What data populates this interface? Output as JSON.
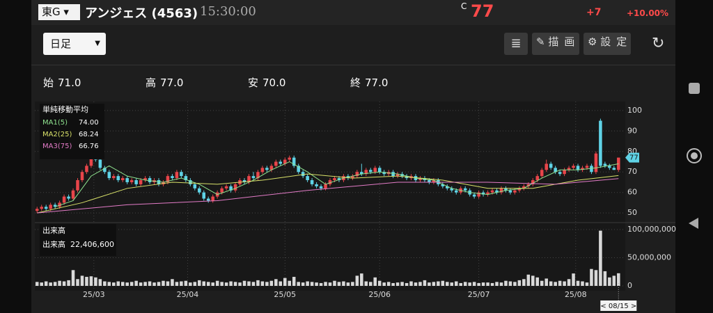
{
  "header": {
    "market": "東G",
    "name": "アンジェス (4563)",
    "time": "15:30:00",
    "price_prefix": "C",
    "price": "77",
    "change": "+7",
    "change_pct": "+10.00%"
  },
  "toolbar": {
    "period": "日足",
    "buttons": [
      "描画",
      "設定"
    ]
  },
  "stats": [
    {
      "label": "始",
      "value": "71.0"
    },
    {
      "label": "高",
      "value": "77.0"
    },
    {
      "label": "安",
      "value": "70.0"
    },
    {
      "label": "終",
      "value": "77.0"
    }
  ],
  "chart_data": {
    "type": "candlestick",
    "legend_title": "単純移動平均",
    "up_color": "#e8454a",
    "down_color": "#5fd3e6",
    "xlim": [
      -0.5,
      130.5
    ],
    "xticks": [
      {
        "value": 12.6,
        "label": "25/03"
      },
      {
        "value": 33.4,
        "label": "25/04"
      },
      {
        "value": 55,
        "label": "25/05"
      },
      {
        "value": 76,
        "label": "25/06"
      },
      {
        "value": 98,
        "label": "25/07"
      },
      {
        "value": 119.5,
        "label": "25/08"
      }
    ],
    "ylim": [
      47,
      103
    ],
    "yticks": [
      50,
      60,
      70,
      80,
      90,
      100
    ],
    "grid": true,
    "candles": [
      [
        51,
        53,
        50,
        52
      ],
      [
        52,
        54,
        51,
        53
      ],
      [
        53,
        54,
        51,
        52
      ],
      [
        52,
        55,
        51,
        54
      ],
      [
        54,
        55,
        52,
        53
      ],
      [
        53,
        56,
        52,
        55
      ],
      [
        55,
        59,
        54,
        58
      ],
      [
        58,
        59,
        56,
        57
      ],
      [
        57,
        62,
        56,
        61
      ],
      [
        61,
        67,
        60,
        66
      ],
      [
        66,
        71,
        65,
        70
      ],
      [
        70,
        74,
        69,
        73
      ],
      [
        73,
        78,
        72,
        77
      ],
      [
        77,
        79,
        75,
        76
      ],
      [
        76,
        77,
        71,
        72
      ],
      [
        72,
        73,
        69,
        70
      ],
      [
        70,
        71,
        66,
        67
      ],
      [
        67,
        69,
        66,
        68
      ],
      [
        68,
        69,
        65,
        66
      ],
      [
        66,
        68,
        65,
        67
      ],
      [
        67,
        68,
        64,
        65
      ],
      [
        65,
        67,
        64,
        66
      ],
      [
        66,
        67,
        63,
        64
      ],
      [
        64,
        67,
        63,
        66
      ],
      [
        66,
        68,
        65,
        67
      ],
      [
        67,
        68,
        64,
        65
      ],
      [
        65,
        67,
        64,
        66
      ],
      [
        66,
        67,
        63,
        64
      ],
      [
        64,
        66,
        63,
        65
      ],
      [
        65,
        69,
        64,
        68
      ],
      [
        68,
        69,
        66,
        67
      ],
      [
        67,
        71,
        66,
        70
      ],
      [
        70,
        71,
        67,
        68
      ],
      [
        68,
        69,
        65,
        66
      ],
      [
        66,
        67,
        63,
        64
      ],
      [
        64,
        65,
        61,
        62
      ],
      [
        62,
        63,
        59,
        60
      ],
      [
        60,
        61,
        56,
        57
      ],
      [
        57,
        58,
        55,
        56
      ],
      [
        56,
        59,
        55,
        58
      ],
      [
        58,
        61,
        57,
        60
      ],
      [
        60,
        63,
        59,
        62
      ],
      [
        62,
        64,
        61,
        63
      ],
      [
        63,
        64,
        60,
        61
      ],
      [
        61,
        65,
        60,
        64
      ],
      [
        64,
        67,
        63,
        66
      ],
      [
        66,
        67,
        64,
        65
      ],
      [
        65,
        69,
        64,
        68
      ],
      [
        68,
        70,
        66,
        67
      ],
      [
        67,
        71,
        66,
        70
      ],
      [
        70,
        73,
        69,
        72
      ],
      [
        72,
        73,
        70,
        71
      ],
      [
        71,
        74,
        70,
        73
      ],
      [
        73,
        76,
        72,
        75
      ],
      [
        75,
        76,
        73,
        74
      ],
      [
        74,
        77,
        73,
        76
      ],
      [
        76,
        78,
        75,
        77
      ],
      [
        77,
        78,
        72,
        73
      ],
      [
        73,
        74,
        69,
        70
      ],
      [
        70,
        71,
        67,
        68
      ],
      [
        68,
        69,
        65,
        66
      ],
      [
        66,
        67,
        63,
        64
      ],
      [
        64,
        65,
        62,
        63
      ],
      [
        63,
        64,
        61,
        62
      ],
      [
        62,
        65,
        61,
        64
      ],
      [
        64,
        67,
        63,
        66
      ],
      [
        66,
        68,
        65,
        67
      ],
      [
        67,
        68,
        65,
        66
      ],
      [
        66,
        69,
        65,
        68
      ],
      [
        68,
        69,
        66,
        67
      ],
      [
        67,
        69,
        66,
        68
      ],
      [
        68,
        71,
        67,
        70
      ],
      [
        70,
        74,
        68,
        69
      ],
      [
        69,
        72,
        68,
        71
      ],
      [
        71,
        72,
        69,
        70
      ],
      [
        70,
        73,
        69,
        72
      ],
      [
        72,
        73,
        69,
        70
      ],
      [
        70,
        71,
        68,
        69
      ],
      [
        69,
        71,
        68,
        70
      ],
      [
        70,
        71,
        67,
        68
      ],
      [
        68,
        70,
        67,
        69
      ],
      [
        69,
        70,
        67,
        68
      ],
      [
        68,
        69,
        66,
        67
      ],
      [
        67,
        69,
        66,
        68
      ],
      [
        68,
        69,
        65,
        66
      ],
      [
        66,
        68,
        65,
        67
      ],
      [
        67,
        68,
        65,
        66
      ],
      [
        66,
        67,
        64,
        65
      ],
      [
        65,
        67,
        64,
        66
      ],
      [
        66,
        67,
        63,
        64
      ],
      [
        64,
        65,
        62,
        63
      ],
      [
        63,
        64,
        61,
        62
      ],
      [
        62,
        63,
        60,
        61
      ],
      [
        61,
        62,
        59,
        60
      ],
      [
        60,
        63,
        59,
        62
      ],
      [
        62,
        63,
        60,
        61
      ],
      [
        61,
        62,
        58,
        59
      ],
      [
        59,
        60,
        57,
        58
      ],
      [
        58,
        61,
        57,
        60
      ],
      [
        60,
        61,
        58,
        59
      ],
      [
        59,
        61,
        58,
        60
      ],
      [
        60,
        62,
        59,
        61
      ],
      [
        61,
        62,
        59,
        60
      ],
      [
        60,
        63,
        59,
        62
      ],
      [
        62,
        63,
        60,
        61
      ],
      [
        61,
        62,
        59,
        60
      ],
      [
        60,
        62,
        59,
        61
      ],
      [
        61,
        63,
        60,
        62
      ],
      [
        62,
        64,
        61,
        63
      ],
      [
        63,
        65,
        62,
        64
      ],
      [
        64,
        67,
        63,
        66
      ],
      [
        66,
        69,
        65,
        68
      ],
      [
        68,
        72,
        67,
        71
      ],
      [
        71,
        76,
        70,
        74
      ],
      [
        74,
        75,
        71,
        72
      ],
      [
        72,
        73,
        69,
        70
      ],
      [
        70,
        71,
        68,
        69
      ],
      [
        69,
        72,
        68,
        71
      ],
      [
        71,
        73,
        70,
        72
      ],
      [
        72,
        74,
        71,
        73
      ],
      [
        73,
        74,
        70,
        71
      ],
      [
        71,
        73,
        70,
        72
      ],
      [
        72,
        74,
        71,
        73
      ],
      [
        73,
        74,
        69,
        70
      ],
      [
        70,
        80,
        69,
        79
      ],
      [
        95,
        96,
        72,
        73
      ],
      [
        74,
        75,
        72,
        73
      ],
      [
        73,
        74,
        71,
        72
      ],
      [
        72,
        73,
        71,
        71
      ],
      [
        71,
        77,
        70,
        77
      ]
    ],
    "series": [
      {
        "name": "MA1(5)",
        "color": "#8fe38f",
        "value_label": "74.00",
        "x": [
          4,
          8,
          12,
          16,
          20,
          24,
          28,
          32,
          36,
          40,
          44,
          48,
          52,
          56,
          60,
          64,
          68,
          72,
          76,
          80,
          84,
          88,
          92,
          96,
          100,
          104,
          108,
          112,
          116,
          120,
          124,
          129
        ],
        "values": [
          53,
          56,
          68,
          73,
          68,
          66,
          65,
          67,
          64,
          59,
          62,
          66,
          71,
          75,
          70,
          64,
          67,
          69,
          70,
          69,
          67,
          66,
          62,
          60,
          59,
          61,
          62,
          67,
          71,
          71,
          72,
          74
        ]
      },
      {
        "name": "MA2(25)",
        "color": "#d9e26a",
        "value_label": "68.24",
        "x": [
          0,
          10,
          20,
          30,
          40,
          50,
          60,
          70,
          80,
          90,
          100,
          110,
          120,
          129
        ],
        "values": [
          50,
          55,
          62,
          65,
          64,
          66,
          69,
          67,
          68,
          66,
          62,
          62,
          66,
          68.24
        ]
      },
      {
        "name": "MA3(75)",
        "color": "#e47cc8",
        "value_label": "66.76",
        "x": [
          0,
          20,
          40,
          60,
          80,
          100,
          115,
          129
        ],
        "values": [
          50,
          54,
          56,
          61,
          65,
          65,
          64,
          66.76
        ]
      }
    ],
    "volume": {
      "title": "出来高",
      "label": "出来高",
      "value_label": "22,406,600",
      "color": "#d9d9d9",
      "ylim": [
        0,
        100000000
      ],
      "yticks": [
        0,
        {
          "value": 50000000,
          "label": "50,000,000"
        },
        {
          "value": 100000000,
          "label": "100,000,000"
        }
      ],
      "values": [
        7000000,
        6000000,
        8000000,
        6000000,
        7000000,
        9000000,
        8000000,
        10000000,
        28000000,
        12000000,
        18000000,
        16000000,
        17000000,
        15000000,
        12000000,
        8000000,
        7000000,
        6000000,
        8000000,
        7000000,
        6000000,
        7000000,
        9000000,
        6000000,
        7000000,
        8000000,
        6000000,
        7000000,
        9000000,
        8000000,
        12000000,
        7000000,
        8000000,
        9000000,
        6000000,
        7000000,
        10000000,
        8000000,
        7000000,
        6000000,
        9000000,
        7000000,
        6000000,
        8000000,
        7000000,
        6000000,
        9000000,
        8000000,
        7000000,
        10000000,
        8000000,
        7000000,
        9000000,
        12000000,
        8000000,
        14000000,
        9000000,
        16000000,
        7000000,
        6000000,
        8000000,
        7000000,
        6000000,
        5000000,
        7000000,
        6000000,
        9000000,
        7000000,
        8000000,
        6000000,
        7000000,
        18000000,
        22000000,
        8000000,
        7000000,
        15000000,
        9000000,
        6000000,
        7000000,
        5000000,
        6000000,
        7000000,
        5000000,
        8000000,
        6000000,
        7000000,
        10000000,
        6000000,
        7000000,
        8000000,
        9000000,
        7000000,
        6000000,
        8000000,
        5000000,
        7000000,
        6000000,
        7000000,
        5000000,
        6000000,
        6000000,
        5000000,
        7000000,
        6000000,
        9000000,
        8000000,
        7000000,
        10000000,
        12000000,
        20000000,
        18000000,
        15000000,
        9000000,
        13000000,
        8000000,
        7000000,
        9000000,
        8000000,
        12000000,
        22000000,
        9000000,
        8000000,
        6000000,
        30000000,
        28000000,
        98000000,
        26000000,
        15000000,
        18000000,
        22406600
      ]
    },
    "cursor_date": "< 08/15 >"
  }
}
